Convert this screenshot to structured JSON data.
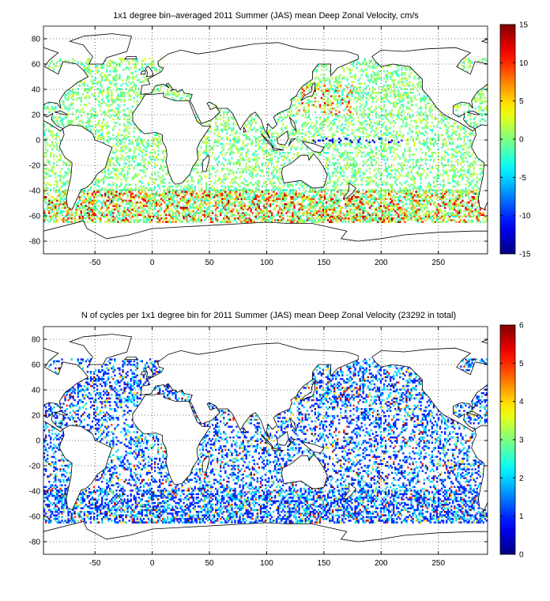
{
  "panels": [
    {
      "title": "1x1 degree bin–averaged 2011 Summer (JAS) mean Deep Zonal Velocity, cm/s",
      "xlim": [
        -95,
        293
      ],
      "ylim": [
        -90,
        90
      ],
      "x_ticks": [
        "-50",
        "0",
        "50",
        "100",
        "150",
        "200",
        "250"
      ],
      "y_ticks": [
        "80",
        "60",
        "40",
        "20",
        "0",
        "-20",
        "-40",
        "-60",
        "-80"
      ],
      "colorbar": {
        "min": -15,
        "max": 15,
        "ticks": [
          "15",
          "10",
          "5",
          "0",
          "-5",
          "-10",
          "-15"
        ],
        "colormap": "jet"
      },
      "grid": true
    },
    {
      "title": "N of cycles per 1x1 degree bin for 2011 Summer (JAS) mean Deep Zonal Velocity (23292 in total)",
      "xlim": [
        -95,
        293
      ],
      "ylim": [
        -90,
        90
      ],
      "x_ticks": [
        "-50",
        "0",
        "50",
        "100",
        "150",
        "200",
        "250"
      ],
      "y_ticks": [
        "80",
        "60",
        "40",
        "20",
        "0",
        "-20",
        "-40",
        "-60",
        "-80"
      ],
      "colorbar": {
        "min": 0,
        "max": 6,
        "ticks": [
          "6",
          "5",
          "4",
          "3",
          "2",
          "1",
          "0"
        ],
        "colormap": "jet"
      },
      "grid": true
    }
  ],
  "colors": {
    "coastline": "#000000",
    "grid": "#000000",
    "land": "#ffffff"
  }
}
